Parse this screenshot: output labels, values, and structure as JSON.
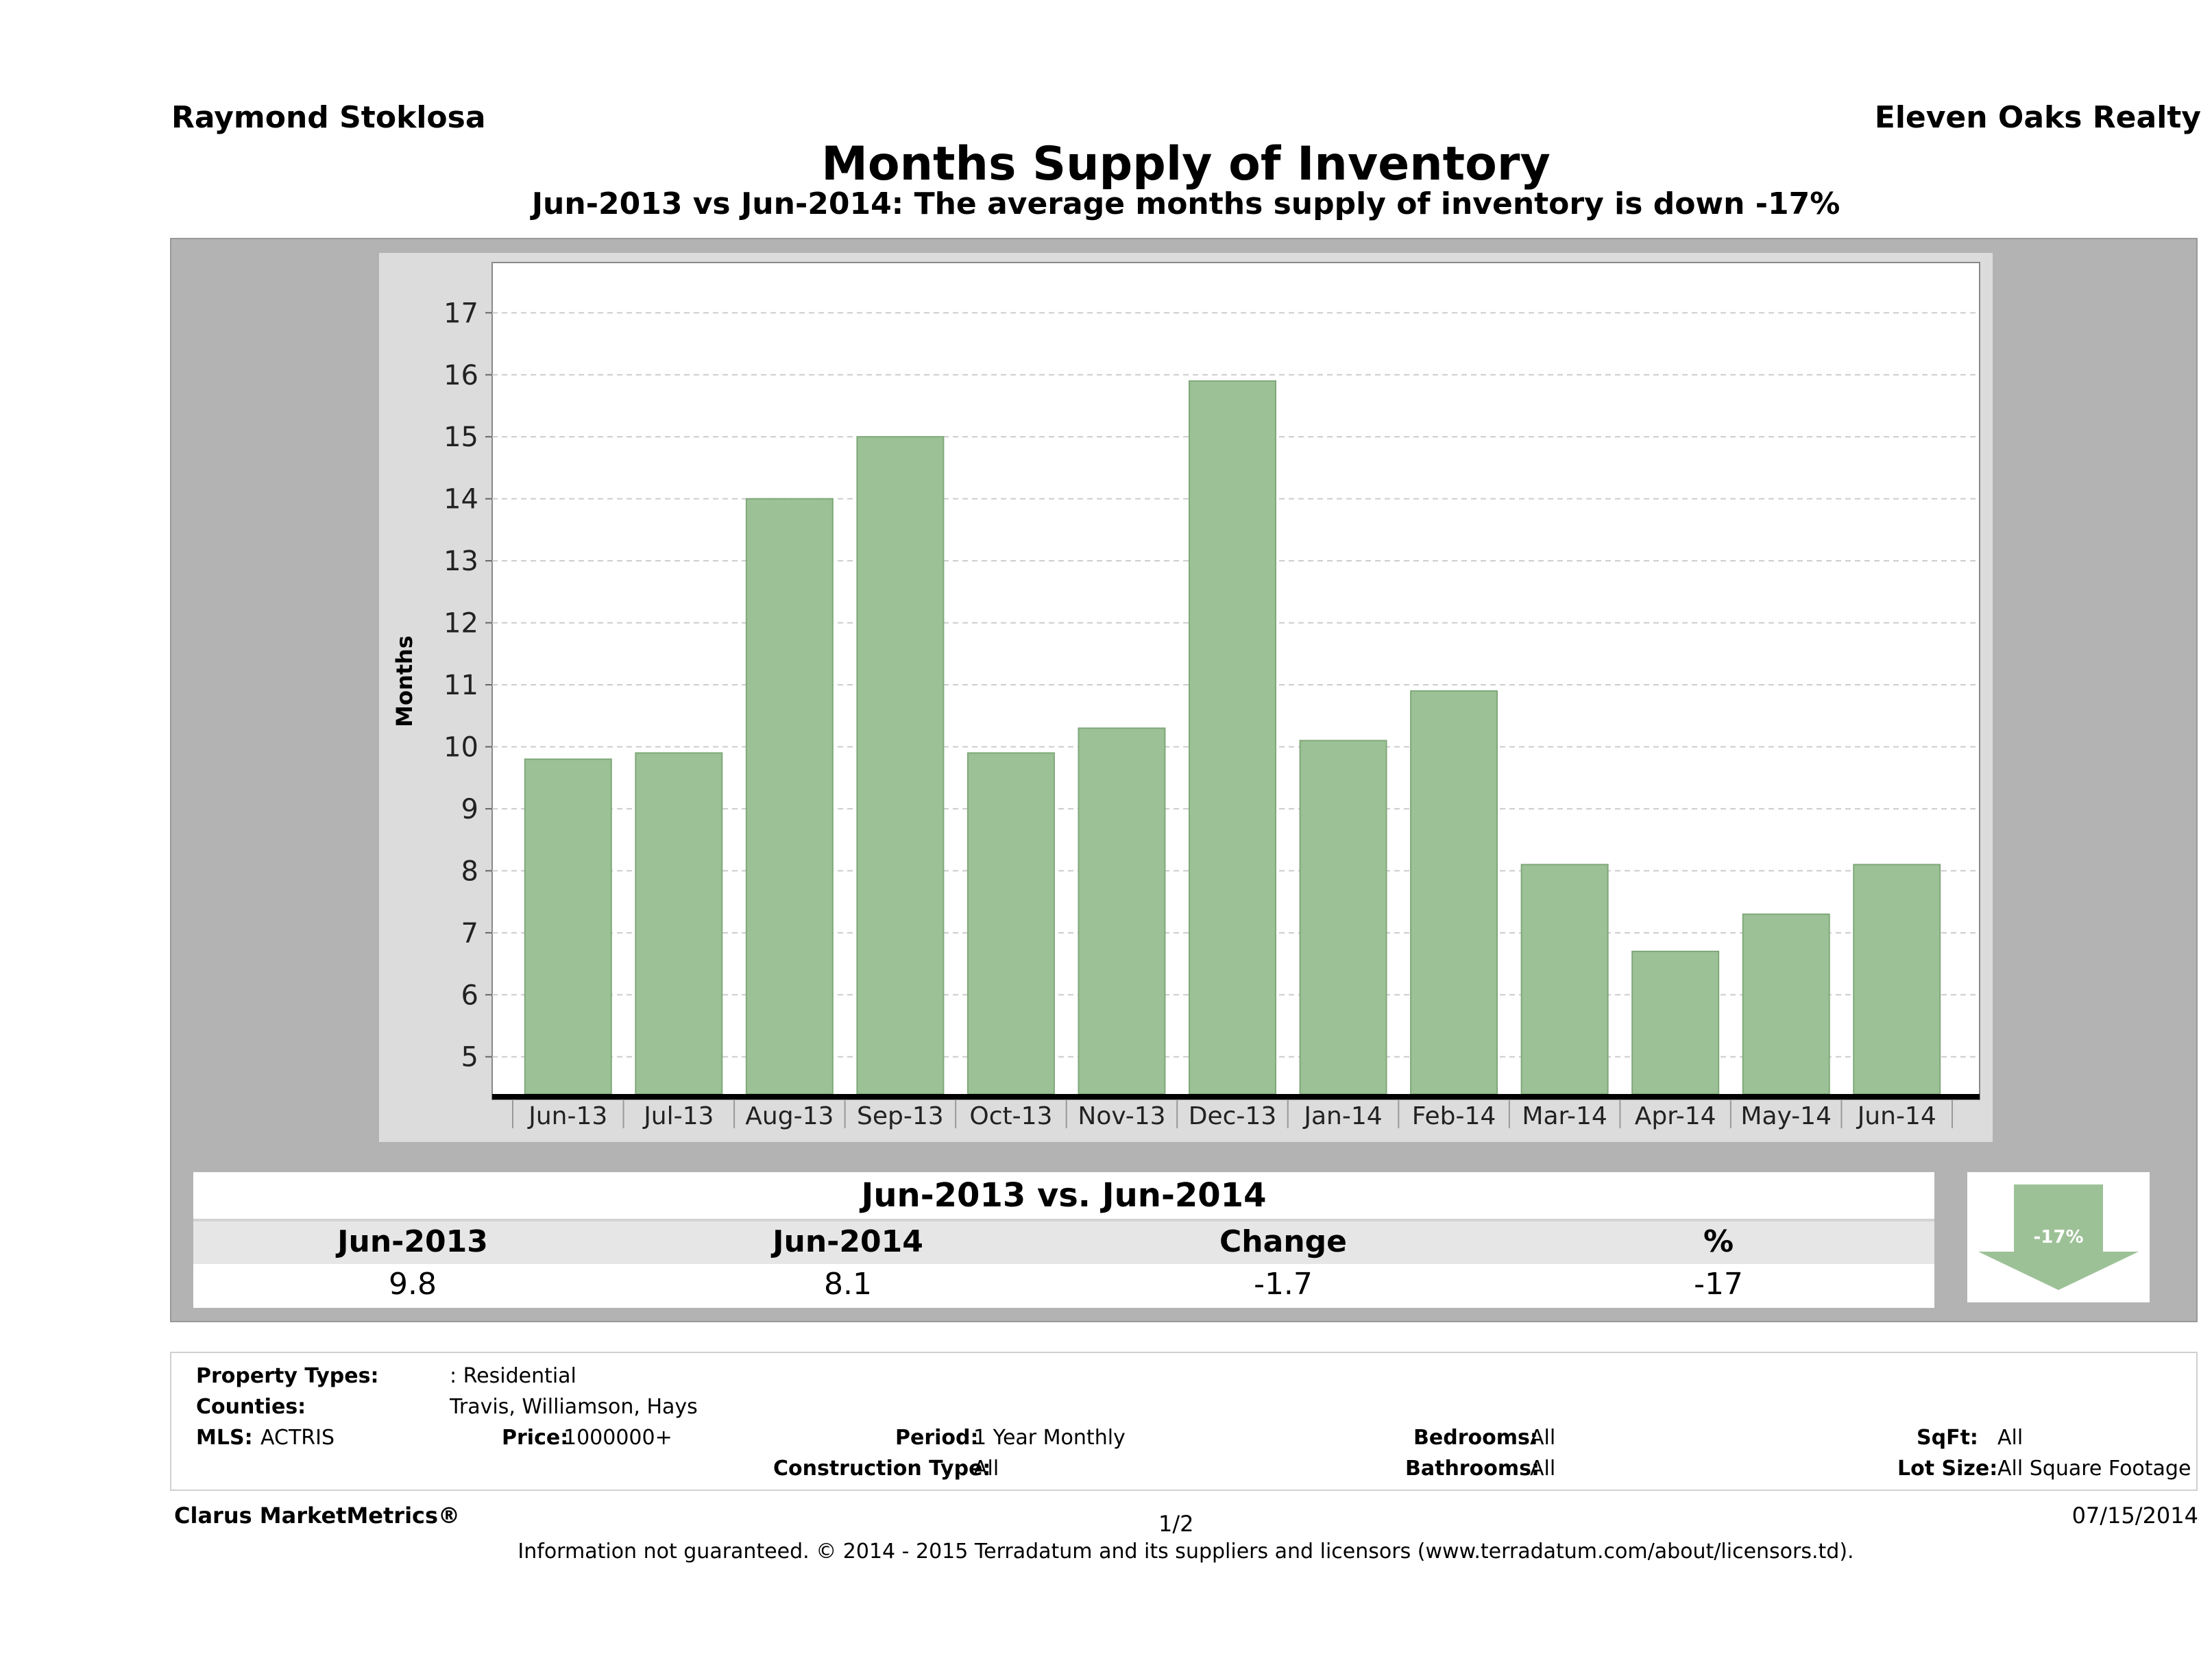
{
  "header": {
    "agent": "Raymond Stoklosa",
    "company": "Eleven Oaks Realty",
    "title": "Months Supply of Inventory",
    "subtitle": "Jun-2013 vs Jun-2014: The average months supply of inventory is down -17%"
  },
  "chart_data": {
    "type": "bar",
    "title": "Months Supply of Inventory",
    "xlabel": "",
    "ylabel": "Months",
    "ylim": [
      4.4,
      17.7
    ],
    "yticks": [
      5,
      6,
      7,
      8,
      9,
      10,
      11,
      12,
      13,
      14,
      15,
      16,
      17
    ],
    "categories": [
      "Jun-13",
      "Jul-13",
      "Aug-13",
      "Sep-13",
      "Oct-13",
      "Nov-13",
      "Dec-13",
      "Jan-14",
      "Feb-14",
      "Mar-14",
      "Apr-14",
      "May-14",
      "Jun-14"
    ],
    "values": [
      9.8,
      9.9,
      14.0,
      15.0,
      9.9,
      10.3,
      15.9,
      10.1,
      10.9,
      8.1,
      6.7,
      7.3,
      8.1
    ],
    "grid": true,
    "bar_color": "#9dc197"
  },
  "comparison": {
    "heading": "Jun-2013 vs. Jun-2014",
    "columns": [
      "Jun-2013",
      "Jun-2014",
      "Change",
      "%"
    ],
    "values": [
      "9.8",
      "8.1",
      "-1.7",
      "-17"
    ],
    "badge": "-17%",
    "badge_color": "#9dc197"
  },
  "filters": {
    "property_types_label": "Property Types:",
    "property_types_value": ": Residential",
    "counties_label": "Counties:",
    "counties_value": "Travis, Williamson, Hays",
    "mls_label": "MLS:",
    "mls_value": "ACTRIS",
    "price_label": "Price:",
    "price_value": "1000000+",
    "period_label": "Period:",
    "period_value": "1 Year Monthly",
    "construction_label": "Construction Type:",
    "construction_value": "All",
    "bedrooms_label": "Bedrooms:",
    "bedrooms_value": "All",
    "bathrooms_label": "Bathrooms:",
    "bathrooms_value": "All",
    "sqft_label": "SqFt:",
    "sqft_value": "All",
    "lotsize_label": "Lot Size:",
    "lotsize_value": "All Square Footage"
  },
  "footer": {
    "brand": "Clarus MarketMetrics®",
    "page": "1/2",
    "date": "07/15/2014",
    "disclaimer": "Information not guaranteed. © 2014 - 2015 Terradatum and its suppliers and licensors (www.terradatum.com/about/licensors.td)."
  }
}
